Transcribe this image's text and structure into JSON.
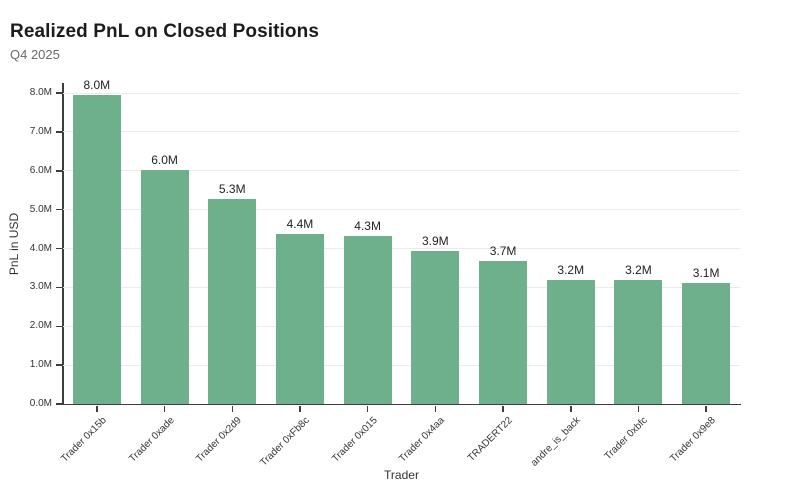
{
  "chart_data": {
    "type": "bar",
    "title": "Realized PnL on Closed Positions",
    "subtitle": "Q4 2025",
    "xlabel": "Trader",
    "ylabel": "PnL in USD",
    "categories": [
      "Trader 0x15b",
      "Trader 0xade",
      "Trader 0x2d9",
      "Trader 0xFb8c",
      "Trader 0x015",
      "Trader 0x4aa",
      "TRADERT22",
      "andre_is_back",
      "Trader 0xbfc",
      "Trader 0x9e8"
    ],
    "values": [
      7.95,
      6.02,
      5.27,
      4.38,
      4.32,
      3.93,
      3.67,
      3.19,
      3.18,
      3.12
    ],
    "value_labels": [
      "8.0M",
      "6.0M",
      "5.3M",
      "4.4M",
      "4.3M",
      "3.9M",
      "3.7M",
      "3.2M",
      "3.2M",
      "3.1M"
    ],
    "unit": "millions USD",
    "ylim": [
      0,
      8.26
    ],
    "ytick_values": [
      0,
      1,
      2,
      3,
      4,
      5,
      6,
      7,
      8
    ],
    "yticks": [
      "0.0M",
      "1.0M",
      "2.0M",
      "3.0M",
      "4.0M",
      "5.0M",
      "6.0M",
      "7.0M",
      "8.0M"
    ],
    "grid": "horizontal",
    "legend": "none",
    "colors": {
      "bar": "#6FB08C",
      "grid": "#ebebeb",
      "axis": "#3d3d3d",
      "title_text": "#1c1c1c",
      "subtitle_text": "#6b6b6b",
      "tick_text": "#333333",
      "value_text": "#222222",
      "background": "#ffffff"
    }
  }
}
